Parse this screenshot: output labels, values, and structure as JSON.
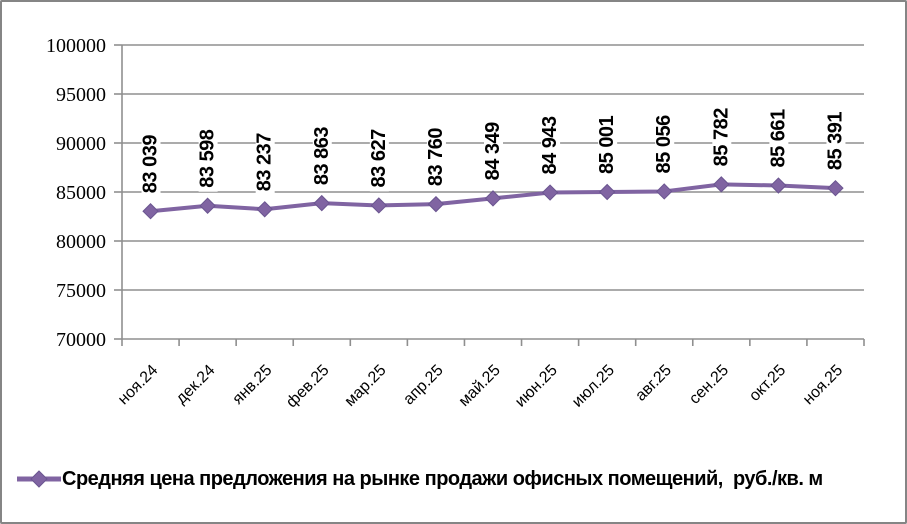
{
  "chart_data": {
    "type": "line",
    "title": "",
    "categories": [
      "ноя.24",
      "дек.24",
      "янв.25",
      "фев.25",
      "мар.25",
      "апр.25",
      "май.25",
      "июн.25",
      "июл.25",
      "авг.25",
      "сен.25",
      "окт.25",
      "ноя.25"
    ],
    "series": [
      {
        "name": "Средняя цена предложения на рынке продажи офисных помещений,  руб./кв. м",
        "values": [
          83039,
          83598,
          83237,
          83863,
          83627,
          83760,
          84349,
          84943,
          85001,
          85056,
          85782,
          85661,
          85391
        ],
        "point_labels": [
          "83 039",
          "83 598",
          "83 237",
          "83 863",
          "83 627",
          "83 760",
          "84 349",
          "84 943",
          "85 001",
          "85 056",
          "85 782",
          "85 661",
          "85 391"
        ],
        "color": "#8064A2",
        "marker": "diamond",
        "marker_edge_color": "#6A5590"
      }
    ],
    "ylim": [
      70000,
      100000
    ],
    "ytick_step": 5000,
    "ytick_labels": [
      "70000",
      "75000",
      "80000",
      "85000",
      "90000",
      "95000",
      "100000"
    ],
    "xlabel": "",
    "ylabel": "",
    "grid": "horizontal",
    "grid_color": "#8F8F8F",
    "axis_color": "#8F8F8F",
    "data_label_color": "#000000",
    "legend_position": "bottom-left"
  }
}
